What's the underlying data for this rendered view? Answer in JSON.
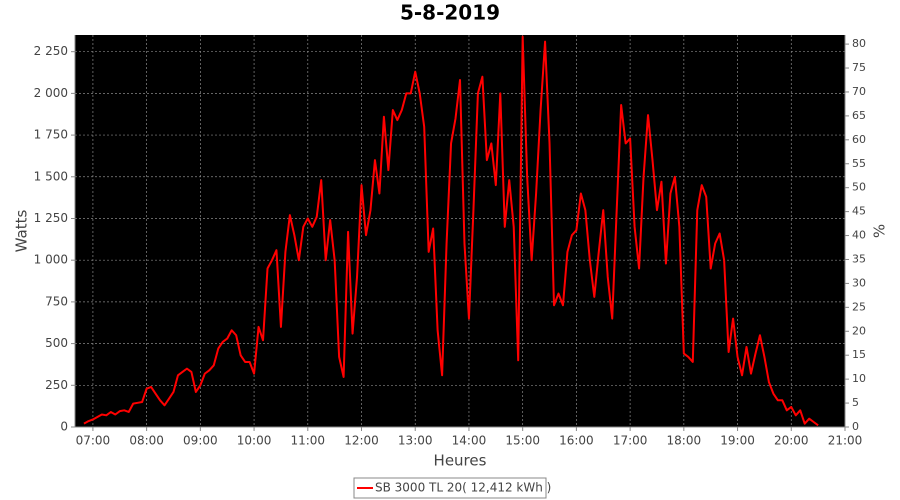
{
  "chart_data": {
    "type": "line",
    "title": "5-8-2019",
    "x_label": "Heures",
    "y_label": "Watts",
    "y2_label": "%",
    "xlim": [
      "06:40",
      "21:00"
    ],
    "xticks": [
      "07:00",
      "08:00",
      "09:00",
      "10:00",
      "11:00",
      "12:00",
      "13:00",
      "14:00",
      "15:00",
      "16:00",
      "17:00",
      "18:00",
      "19:00",
      "20:00",
      "21:00"
    ],
    "ylim": [
      0,
      2350
    ],
    "yticks": [
      0,
      250,
      500,
      750,
      {
        "value": 1000,
        "label": "1 000"
      },
      {
        "value": 1250,
        "label": "1 250"
      },
      {
        "value": 1500,
        "label": "1 500"
      },
      {
        "value": 1750,
        "label": "1 750"
      },
      {
        "value": 2000,
        "label": "2 000"
      },
      {
        "value": 2250,
        "label": "2 250"
      }
    ],
    "y2lim": [
      0,
      81.9
    ],
    "y2ticks": [
      0,
      5,
      10,
      15,
      20,
      25,
      30,
      35,
      40,
      45,
      50,
      55,
      60,
      65,
      70,
      75,
      80
    ],
    "grid": true,
    "legend": "bottom",
    "x": [
      "06:50",
      "06:55",
      "07:00",
      "07:05",
      "07:10",
      "07:15",
      "07:20",
      "07:25",
      "07:30",
      "07:35",
      "07:40",
      "07:45",
      "07:50",
      "07:55",
      "08:00",
      "08:05",
      "08:10",
      "08:15",
      "08:20",
      "08:25",
      "08:30",
      "08:35",
      "08:40",
      "08:45",
      "08:50",
      "08:55",
      "09:00",
      "09:05",
      "09:10",
      "09:15",
      "09:20",
      "09:25",
      "09:30",
      "09:35",
      "09:40",
      "09:45",
      "09:50",
      "09:55",
      "10:00",
      "10:05",
      "10:10",
      "10:15",
      "10:20",
      "10:25",
      "10:30",
      "10:35",
      "10:40",
      "10:45",
      "10:50",
      "10:55",
      "11:00",
      "11:05",
      "11:10",
      "11:15",
      "11:20",
      "11:25",
      "11:30",
      "11:35",
      "11:40",
      "11:45",
      "11:50",
      "11:55",
      "12:00",
      "12:05",
      "12:10",
      "12:15",
      "12:20",
      "12:25",
      "12:30",
      "12:35",
      "12:40",
      "12:45",
      "12:50",
      "12:55",
      "13:00",
      "13:05",
      "13:10",
      "13:15",
      "13:20",
      "13:25",
      "13:30",
      "13:35",
      "13:40",
      "13:45",
      "13:50",
      "13:55",
      "14:00",
      "14:05",
      "14:10",
      "14:15",
      "14:20",
      "14:25",
      "14:30",
      "14:35",
      "14:40",
      "14:45",
      "14:50",
      "14:55",
      "15:00",
      "15:05",
      "15:10",
      "15:15",
      "15:20",
      "15:25",
      "15:30",
      "15:35",
      "15:40",
      "15:45",
      "15:50",
      "15:55",
      "16:00",
      "16:05",
      "16:10",
      "16:15",
      "16:20",
      "16:25",
      "16:30",
      "16:35",
      "16:40",
      "16:45",
      "16:50",
      "16:55",
      "17:00",
      "17:05",
      "17:10",
      "17:15",
      "17:20",
      "17:25",
      "17:30",
      "17:35",
      "17:40",
      "17:45",
      "17:50",
      "17:55",
      "18:00",
      "18:05",
      "18:10",
      "18:15",
      "18:20",
      "18:25",
      "18:30",
      "18:35",
      "18:40",
      "18:45",
      "18:50",
      "18:55",
      "19:00",
      "19:05",
      "19:10",
      "19:15",
      "19:20",
      "19:25",
      "19:30",
      "19:35",
      "19:40",
      "19:45",
      "19:50",
      "19:55",
      "20:00",
      "20:05",
      "20:10",
      "20:15",
      "20:20",
      "20:25",
      "20:30"
    ],
    "series": [
      {
        "name": "SB 3000 TL 20( 12,412 kWh )",
        "color": "#ff0000",
        "values": [
          20,
          35,
          45,
          60,
          75,
          70,
          90,
          75,
          95,
          100,
          90,
          140,
          145,
          150,
          230,
          240,
          200,
          160,
          130,
          170,
          210,
          310,
          330,
          350,
          330,
          210,
          250,
          320,
          340,
          370,
          470,
          510,
          530,
          580,
          550,
          430,
          390,
          390,
          320,
          600,
          520,
          950,
          1000,
          1060,
          600,
          1050,
          1270,
          1150,
          1000,
          1200,
          1250,
          1200,
          1260,
          1480,
          1000,
          1240,
          1000,
          420,
          300,
          1170,
          560,
          900,
          1450,
          1150,
          1300,
          1600,
          1400,
          1860,
          1540,
          1900,
          1840,
          1900,
          2000,
          2000,
          2130,
          2000,
          1800,
          1050,
          1190,
          580,
          310,
          1100,
          1700,
          1850,
          2080,
          1100,
          650,
          1300,
          2000,
          2100,
          1600,
          1700,
          1450,
          2000,
          1200,
          1480,
          1200,
          400,
          2340,
          1500,
          1000,
          1400,
          1900,
          2310,
          1700,
          730,
          800,
          730,
          1050,
          1150,
          1180,
          1400,
          1300,
          1000,
          780,
          1050,
          1300,
          900,
          650,
          1300,
          1930,
          1700,
          1730,
          1200,
          950,
          1500,
          1870,
          1600,
          1300,
          1470,
          980,
          1400,
          1500,
          1200,
          440,
          420,
          390,
          1300,
          1450,
          1380,
          950,
          1100,
          1160,
          1000,
          450,
          650,
          420,
          310,
          480,
          320,
          440,
          550,
          420,
          270,
          200,
          160,
          160,
          100,
          120,
          70,
          100,
          20,
          50,
          30,
          10
        ]
      }
    ]
  }
}
